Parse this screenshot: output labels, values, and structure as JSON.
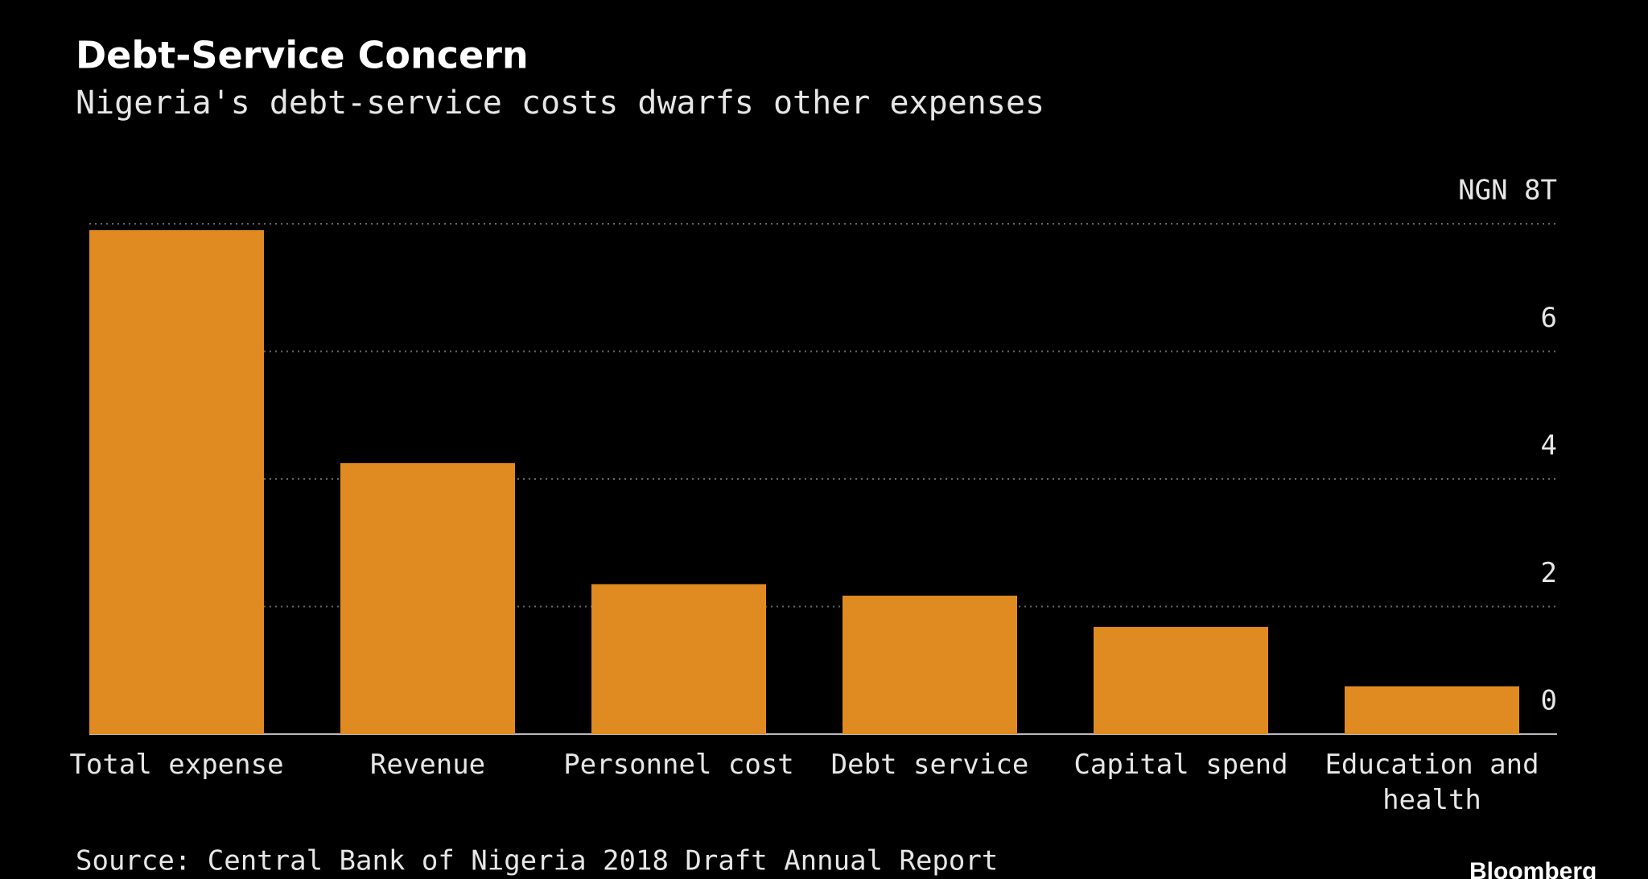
{
  "chart_data": {
    "type": "bar",
    "title": "Debt-Service Concern",
    "subtitle": "Nigeria's debt-service costs dwarfs other expenses",
    "categories": [
      "Total expense",
      "Revenue",
      "Personnel cost",
      "Debt service",
      "Capital spend",
      "Education and health"
    ],
    "values": [
      7.9,
      4.25,
      2.35,
      2.17,
      1.68,
      0.75
    ],
    "color": "#e08a22",
    "ylim": [
      0,
      8
    ],
    "yticks": [
      0,
      2,
      4,
      6,
      {
        "value": 8,
        "label": "NGN 8T"
      }
    ],
    "grid": true,
    "source": "Source: Central Bank of Nigeria 2018 Draft Annual Report",
    "credit": "Bloomberg"
  }
}
